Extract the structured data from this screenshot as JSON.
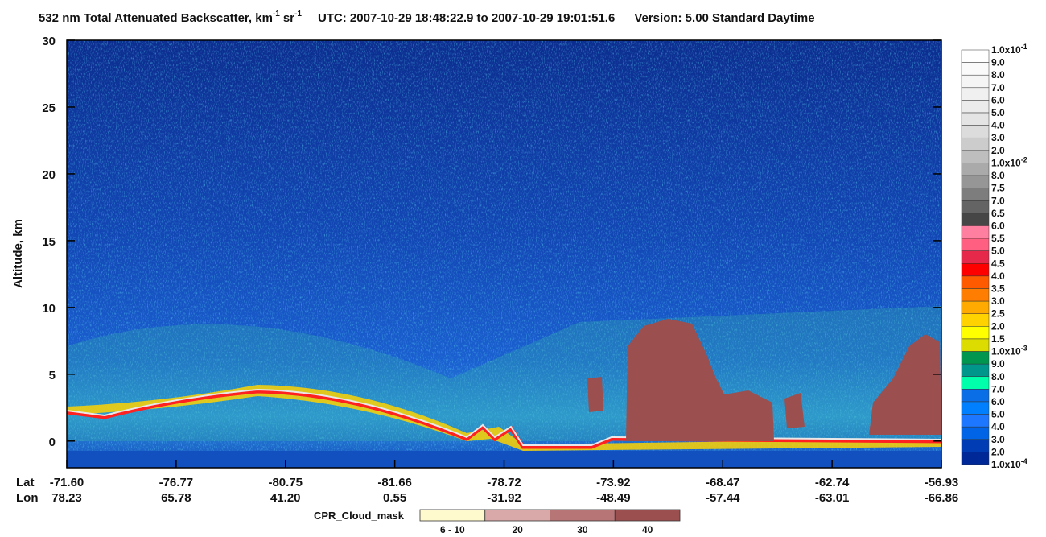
{
  "chart_data": {
    "type": "heatmap",
    "title": [
      "532 nm Total Attenuated Backscatter, km",
      "-1",
      "sr",
      "-1"
    ],
    "time_range": "UTC:  2007-10-29 18:48:22.9  to  2007-10-29 19:01:51.6",
    "version": "Version: 5.00  Standard  Daytime",
    "ylabel": "Altitude, km",
    "ylim": [
      -2,
      30
    ],
    "yticks": [
      0,
      5,
      10,
      15,
      20,
      25,
      30
    ],
    "x_rows": [
      "Lat",
      "Lon"
    ],
    "lat": [
      "-71.60",
      "-76.77",
      "-80.75",
      "-81.66",
      "-78.72",
      "-73.92",
      "-68.47",
      "-62.74",
      "-56.93"
    ],
    "lon": [
      "78.23",
      "65.78",
      "41.20",
      "0.55",
      "-31.92",
      "-48.49",
      "-57.44",
      "-63.01",
      "-66.86"
    ],
    "colorbar": {
      "labels": [
        {
          "text": "1.0x10",
          "exponent": "-1"
        },
        "9.0",
        "8.0",
        "7.0",
        "6.0",
        "5.0",
        "4.0",
        "3.0",
        "2.0",
        {
          "text": "1.0x10",
          "exponent": "-2"
        },
        "8.0",
        "7.5",
        "7.0",
        "6.5",
        "6.0",
        "5.5",
        "5.0",
        "4.5",
        "4.0",
        "3.5",
        "3.0",
        "2.5",
        "2.0",
        "1.5",
        {
          "text": "1.0x10",
          "exponent": "-3"
        },
        "9.0",
        "8.0",
        "7.0",
        "6.0",
        "5.0",
        "4.0",
        "3.0",
        "2.0",
        {
          "text": "1.0x10",
          "exponent": "-4"
        }
      ],
      "colors": [
        "#ffffff",
        "#fafafa",
        "#f5f5f5",
        "#f0f0f0",
        "#ebebeb",
        "#e4e4e4",
        "#dcdcdc",
        "#cccccc",
        "#bebebe",
        "#aaaaaa",
        "#969696",
        "#7d7d7d",
        "#646464",
        "#464646",
        "#ff7fa0",
        "#ff5f80",
        "#e6284b",
        "#ff0000",
        "#ff5a00",
        "#ff7d00",
        "#ffaa00",
        "#ffd200",
        "#ffff00",
        "#dcdc00",
        "#009650",
        "#00968c",
        "#00ffaa",
        "#0a6ee6",
        "#0080ff",
        "#1e78ff",
        "#0064e6",
        "#003cb4",
        "#002896"
      ]
    },
    "cloud_mask": {
      "title": "CPR_Cloud_mask",
      "labels": [
        "6 - 10",
        "20",
        "30",
        "40"
      ],
      "colors": [
        "#fffacd",
        "#d9a9a9",
        "#b87575",
        "#9c4f4f"
      ]
    }
  }
}
